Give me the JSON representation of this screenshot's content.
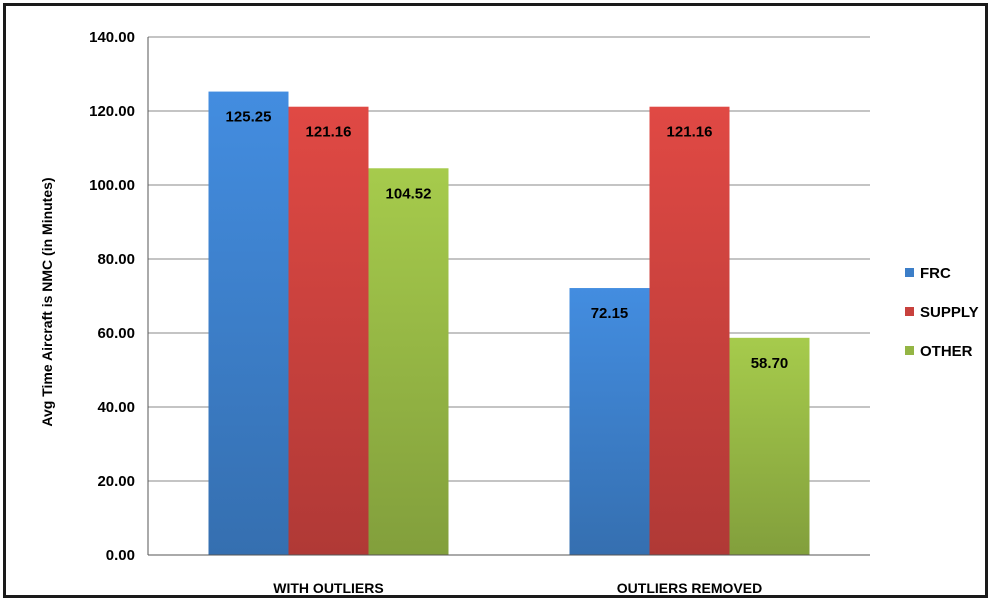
{
  "chart_data": {
    "type": "bar",
    "title": "",
    "xlabel": "",
    "ylabel": "Avg Time Aircraft is NMC (in Minutes)",
    "ylim": [
      0,
      140
    ],
    "ytick_step": 20,
    "ytick_format_decimals": 2,
    "grid": true,
    "legend_position": "right",
    "categories": [
      "WITH OUTLIERS",
      "OUTLIERS REMOVED"
    ],
    "series": [
      {
        "name": "FRC",
        "values": [
          125.25,
          72.15
        ],
        "color": "#3c7ec8"
      },
      {
        "name": "SUPPLY",
        "values": [
          121.16,
          121.16
        ],
        "color": "#c8413d"
      },
      {
        "name": "OTHER",
        "values": [
          104.52,
          58.7
        ],
        "color": "#94b544"
      }
    ],
    "data_labels": [
      [
        "125.25",
        "72.15"
      ],
      [
        "121.16",
        "121.16"
      ],
      [
        "104.52",
        "58.70"
      ]
    ]
  }
}
